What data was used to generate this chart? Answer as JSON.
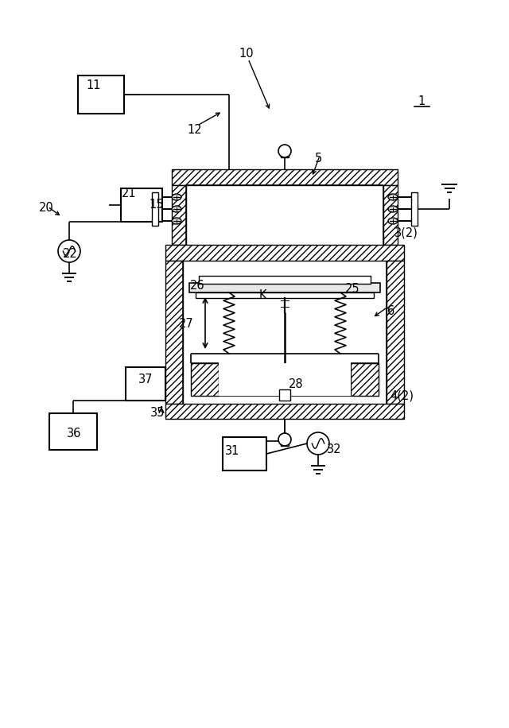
{
  "bg_color": "#ffffff",
  "line_color": "#000000",
  "labels": [
    [
      "1",
      530,
      128
    ],
    [
      "5",
      400,
      200
    ],
    [
      "6",
      492,
      392
    ],
    [
      "10",
      310,
      68
    ],
    [
      "11",
      118,
      108
    ],
    [
      "12",
      245,
      163
    ],
    [
      "15",
      197,
      258
    ],
    [
      "20",
      58,
      262
    ],
    [
      "21",
      162,
      243
    ],
    [
      "22",
      88,
      320
    ],
    [
      "25",
      443,
      363
    ],
    [
      "26",
      248,
      360
    ],
    [
      "27",
      234,
      408
    ],
    [
      "28",
      372,
      483
    ],
    [
      "31",
      292,
      567
    ],
    [
      "32",
      420,
      565
    ],
    [
      "35",
      198,
      520
    ],
    [
      "36",
      93,
      545
    ],
    [
      "37",
      183,
      477
    ],
    [
      "K",
      330,
      372
    ],
    [
      "3(2)",
      511,
      293
    ],
    [
      "4(2)",
      505,
      498
    ]
  ]
}
